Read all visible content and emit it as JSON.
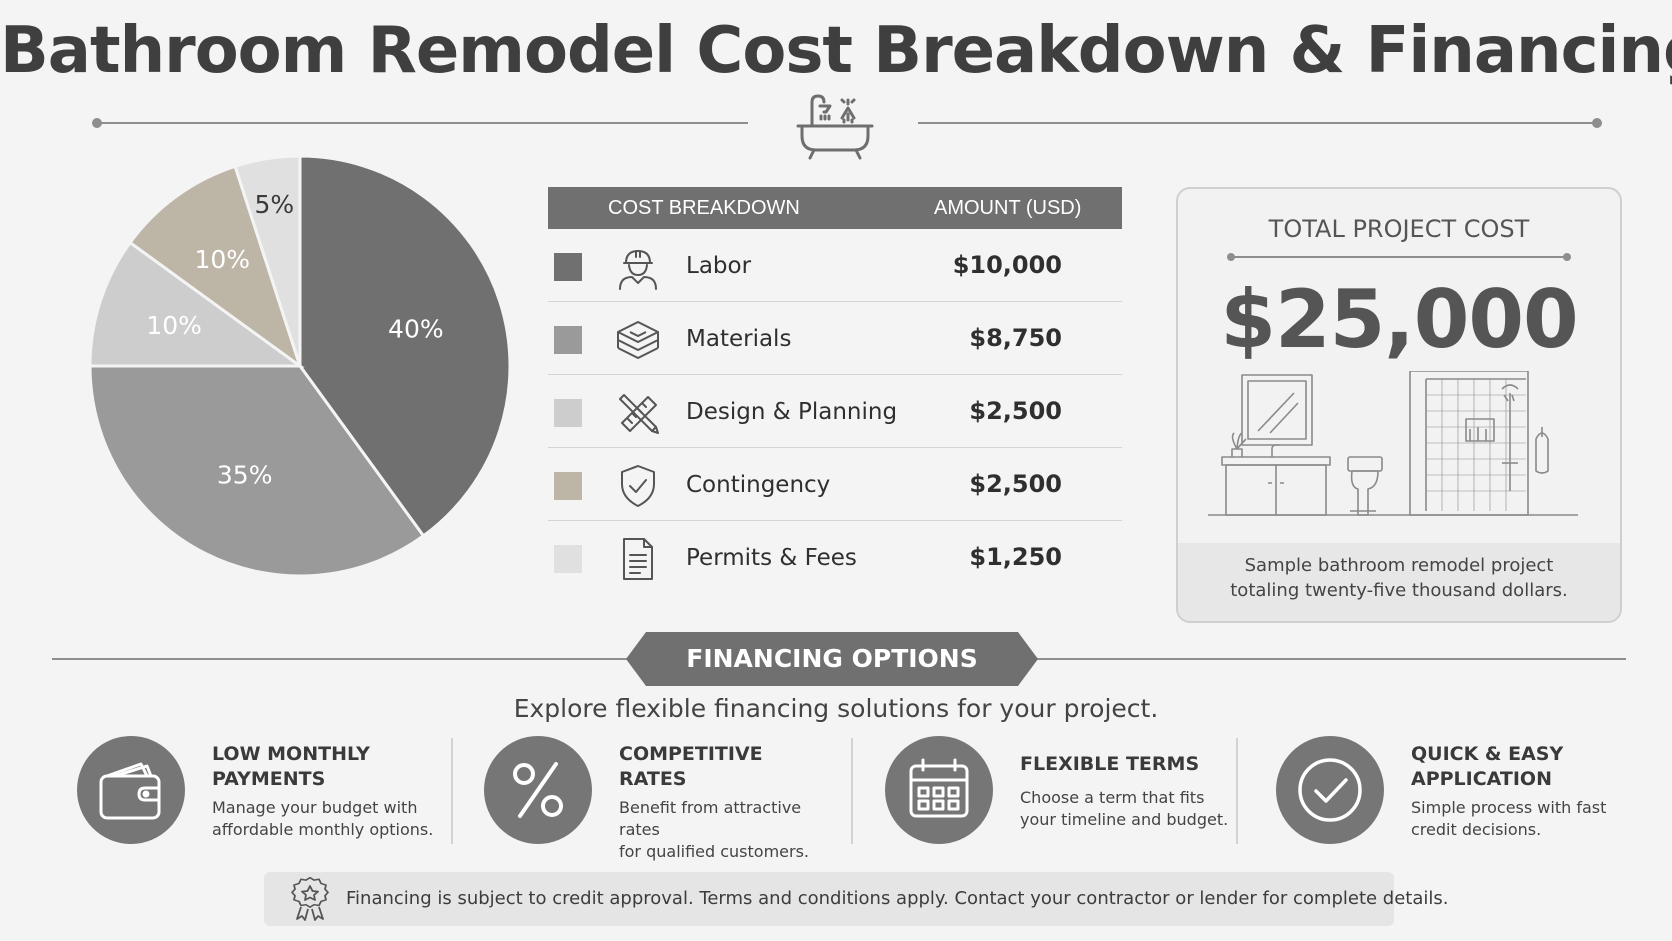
{
  "title": "Bathroom Remodel Cost Breakdown & Financing",
  "colors": {
    "labor": "#707070",
    "materials": "#9a9a9a",
    "design": "#cdcdcd",
    "contingency": "#bdb5a6",
    "permits": "#e0e0e0",
    "accent_dark": "#707070"
  },
  "chart_data": {
    "type": "pie",
    "title": "",
    "slices": [
      {
        "label": "Labor",
        "value": 40,
        "display": "40%",
        "color": "#707070",
        "text_color": "#ffffff"
      },
      {
        "label": "Materials",
        "value": 35,
        "display": "35%",
        "color": "#9a9a9a",
        "text_color": "#ffffff"
      },
      {
        "label": "Design & Planning",
        "value": 10,
        "display": "10%",
        "color": "#cdcdcd",
        "text_color": "#ffffff"
      },
      {
        "label": "Contingency",
        "value": 10,
        "display": "10%",
        "color": "#bdb5a6",
        "text_color": "#ffffff"
      },
      {
        "label": "Permits & Fees",
        "value": 5,
        "display": "5%",
        "color": "#e0e0e0",
        "text_color": "#3a3a3a"
      }
    ]
  },
  "cost_table": {
    "header_category": "COST BREAKDOWN",
    "header_amount": "AMOUNT (USD)",
    "rows": [
      {
        "label": "Labor",
        "amount": "$10,000",
        "icon": "worker-icon"
      },
      {
        "label": "Materials",
        "amount": "$8,750",
        "icon": "materials-stack-icon"
      },
      {
        "label": "Design & Planning",
        "amount": "$2,500",
        "icon": "pencil-ruler-icon"
      },
      {
        "label": "Contingency",
        "amount": "$2,500",
        "icon": "shield-check-icon"
      },
      {
        "label": "Permits & Fees",
        "amount": "$1,250",
        "icon": "document-icon"
      }
    ]
  },
  "total": {
    "label": "TOTAL PROJECT COST",
    "amount": "$25,000",
    "caption": "Sample bathroom remodel project\ntotaling twenty-five thousand dollars."
  },
  "financing": {
    "banner": "FINANCING OPTIONS",
    "subtitle": "Explore flexible financing solutions for your project.",
    "options": [
      {
        "title": "LOW MONTHLY\nPAYMENTS",
        "desc": "Manage your budget with\naffordable monthly options.",
        "icon": "wallet-icon"
      },
      {
        "title": "COMPETITIVE\nRATES",
        "desc": "Benefit from attractive rates\nfor qualified customers.",
        "icon": "percent-icon"
      },
      {
        "title": "FLEXIBLE TERMS",
        "desc": "Choose a term that fits\nyour timeline and budget.",
        "icon": "calendar-icon"
      },
      {
        "title": "QUICK & EASY\nAPPLICATION",
        "desc": "Simple process with fast\ncredit decisions.",
        "icon": "checkmark-icon"
      }
    ]
  },
  "disclaimer": "Financing is subject to credit approval. Terms and conditions apply. Contact your contractor or lender for complete details."
}
